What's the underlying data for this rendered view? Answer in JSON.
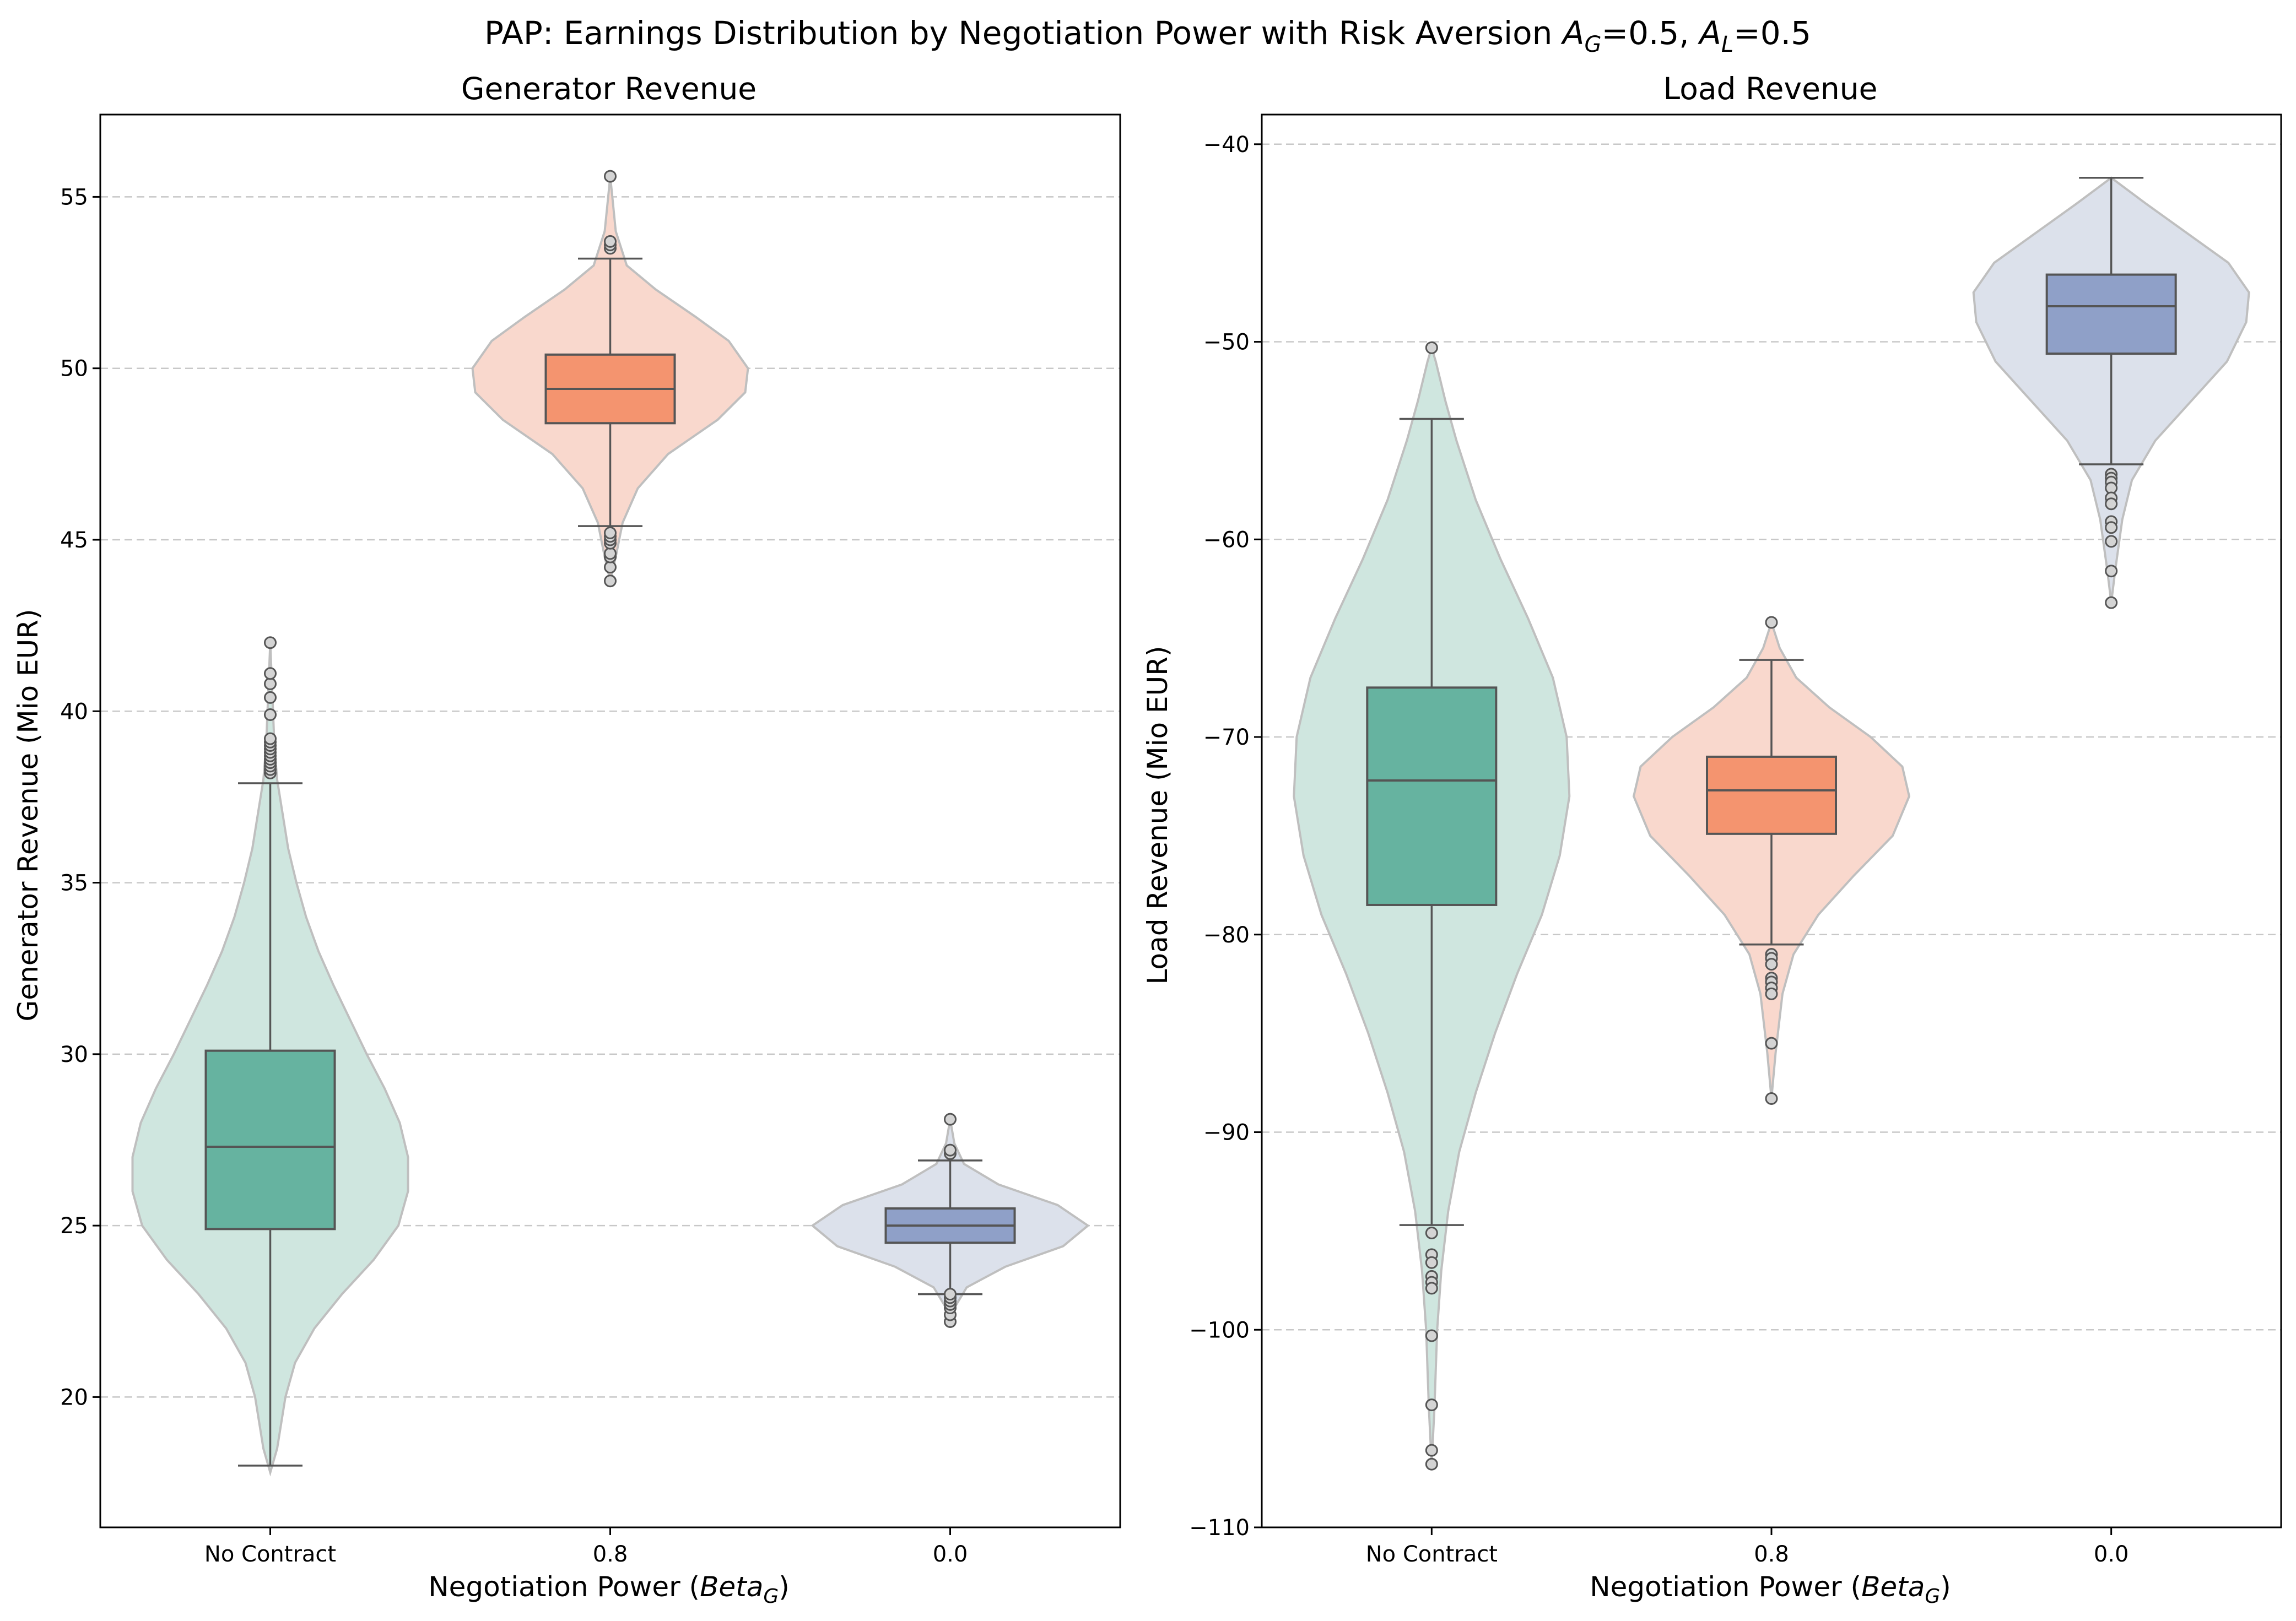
{
  "figure": {
    "suptitle": "PAP: Earnings Distribution by Negotiation Power with Risk Aversion A_G=0.5, A_L=0.5",
    "suptitle_parts": [
      "PAP: Earnings Distribution by Negotiation Power with Risk Aversion ",
      "A",
      "G",
      "=0.5, ",
      "A",
      "L",
      "=0.5"
    ]
  },
  "colors": {
    "no_contract": "#66b3a0",
    "contract_08": "#f4946f",
    "contract_00": "#8fa0c8",
    "no_contract_violin": "#cfe6df",
    "contract_08_violin": "#f9d8cd",
    "contract_00_violin": "#dce1eb"
  },
  "chart_data": [
    {
      "type": "violin+box",
      "title": "Generator Revenue",
      "xlabel_parts": [
        "Negotiation Power (",
        "Beta",
        "G",
        ")"
      ],
      "ylabel": "Generator Revenue (Mio EUR)",
      "categories": [
        "No Contract",
        "0.8",
        "0.0"
      ],
      "ylim": [
        16.2,
        57.4
      ],
      "yticks": [
        20,
        25,
        30,
        35,
        40,
        45,
        50,
        55
      ],
      "grid": "y-dashed",
      "boxes": [
        {
          "category": "No Contract",
          "min": 18.0,
          "q1": 24.9,
          "median": 27.3,
          "q3": 30.1,
          "max": 37.9,
          "outliers": [
            38.2,
            38.3,
            38.4,
            38.5,
            38.6,
            38.7,
            38.8,
            38.9,
            39.0,
            39.1,
            39.2,
            39.9,
            40.4,
            40.8,
            41.1,
            42.0
          ],
          "violin": {
            "y_min": 17.8,
            "y_max": 42.0,
            "width_profile": [
              [
                17.8,
                0.0
              ],
              [
                18.5,
                0.05
              ],
              [
                20,
                0.11
              ],
              [
                21,
                0.18
              ],
              [
                22,
                0.32
              ],
              [
                23,
                0.52
              ],
              [
                24,
                0.75
              ],
              [
                25,
                0.93
              ],
              [
                26,
                1.0
              ],
              [
                27,
                1.0
              ],
              [
                28,
                0.94
              ],
              [
                29,
                0.83
              ],
              [
                30,
                0.7
              ],
              [
                31,
                0.58
              ],
              [
                32,
                0.46
              ],
              [
                33,
                0.35
              ],
              [
                34,
                0.26
              ],
              [
                35,
                0.19
              ],
              [
                36,
                0.13
              ],
              [
                37,
                0.09
              ],
              [
                38,
                0.05
              ],
              [
                39,
                0.03
              ],
              [
                40,
                0.02
              ],
              [
                41,
                0.01
              ],
              [
                42,
                0.0
              ]
            ]
          }
        },
        {
          "category": "0.8",
          "min": 45.4,
          "q1": 48.4,
          "median": 49.4,
          "q3": 50.4,
          "max": 53.2,
          "outliers": [
            43.8,
            44.2,
            44.5,
            44.6,
            44.9,
            45.0,
            45.1,
            45.2,
            53.5,
            53.6,
            53.7,
            55.6
          ],
          "violin": {
            "y_min": 43.8,
            "y_max": 55.6,
            "width_profile": [
              [
                43.8,
                0.0
              ],
              [
                44.5,
                0.04
              ],
              [
                45.5,
                0.09
              ],
              [
                46.5,
                0.2
              ],
              [
                47.5,
                0.42
              ],
              [
                48.5,
                0.78
              ],
              [
                49.3,
                0.98
              ],
              [
                50,
                1.0
              ],
              [
                50.8,
                0.86
              ],
              [
                51.5,
                0.62
              ],
              [
                52.3,
                0.33
              ],
              [
                53,
                0.12
              ],
              [
                54,
                0.04
              ],
              [
                55,
                0.015
              ],
              [
                55.6,
                0.0
              ]
            ]
          }
        },
        {
          "category": "0.0",
          "min": 23.0,
          "q1": 24.5,
          "median": 25.0,
          "q3": 25.5,
          "max": 26.9,
          "outliers": [
            22.2,
            22.4,
            22.6,
            22.7,
            22.8,
            22.9,
            23.0,
            27.1,
            27.2,
            28.1
          ],
          "violin": {
            "y_min": 22.2,
            "y_max": 28.1,
            "width_profile": [
              [
                22.2,
                0.0
              ],
              [
                22.6,
                0.03
              ],
              [
                23.2,
                0.12
              ],
              [
                23.8,
                0.4
              ],
              [
                24.4,
                0.82
              ],
              [
                25,
                1.0
              ],
              [
                25.6,
                0.78
              ],
              [
                26.2,
                0.35
              ],
              [
                26.8,
                0.1
              ],
              [
                27.4,
                0.03
              ],
              [
                28.1,
                0.0
              ]
            ]
          }
        }
      ]
    },
    {
      "type": "violin+box",
      "title": "Load Revenue",
      "xlabel_parts": [
        "Negotiation Power (",
        "Beta",
        "G",
        ")"
      ],
      "ylabel": "Load Revenue (Mio EUR)",
      "categories": [
        "No Contract",
        "0.8",
        "0.0"
      ],
      "ylim": [
        -110.0,
        -38.5
      ],
      "yticks": [
        -110,
        -100,
        -90,
        -80,
        -70,
        -60,
        -50,
        -40
      ],
      "grid": "y-dashed",
      "boxes": [
        {
          "category": "No Contract",
          "min": -94.7,
          "q1": -78.5,
          "median": -72.2,
          "q3": -67.5,
          "max": -53.9,
          "outliers": [
            -95.1,
            -96.2,
            -96.6,
            -97.3,
            -97.6,
            -97.9,
            -100.3,
            -103.8,
            -106.1,
            -106.8,
            -50.3
          ],
          "violin": {
            "y_min": -106.8,
            "y_max": -50.3,
            "width_profile": [
              [
                -106.8,
                0.0
              ],
              [
                -104,
                0.02
              ],
              [
                -100,
                0.04
              ],
              [
                -97,
                0.07
              ],
              [
                -94,
                0.12
              ],
              [
                -91,
                0.2
              ],
              [
                -88,
                0.32
              ],
              [
                -85,
                0.46
              ],
              [
                -82,
                0.62
              ],
              [
                -79,
                0.8
              ],
              [
                -76,
                0.93
              ],
              [
                -73,
                1.0
              ],
              [
                -70,
                0.98
              ],
              [
                -67,
                0.88
              ],
              [
                -64,
                0.7
              ],
              [
                -61,
                0.5
              ],
              [
                -58,
                0.32
              ],
              [
                -55,
                0.18
              ],
              [
                -53,
                0.1
              ],
              [
                -51,
                0.03
              ],
              [
                -50.3,
                0.0
              ]
            ]
          }
        },
        {
          "category": "0.8",
          "min": -80.5,
          "q1": -74.9,
          "median": -72.7,
          "q3": -71.0,
          "max": -66.1,
          "outliers": [
            -81.0,
            -81.2,
            -81.5,
            -82.2,
            -82.4,
            -82.7,
            -83.0,
            -85.5,
            -88.3,
            -64.2
          ],
          "violin": {
            "y_min": -88.3,
            "y_max": -64.2,
            "width_profile": [
              [
                -88.3,
                0.0
              ],
              [
                -86,
                0.03
              ],
              [
                -83,
                0.08
              ],
              [
                -81,
                0.16
              ],
              [
                -79,
                0.34
              ],
              [
                -77,
                0.6
              ],
              [
                -75,
                0.88
              ],
              [
                -73,
                1.0
              ],
              [
                -71.5,
                0.95
              ],
              [
                -70,
                0.72
              ],
              [
                -68.5,
                0.42
              ],
              [
                -67,
                0.18
              ],
              [
                -65.5,
                0.06
              ],
              [
                -64.2,
                0.0
              ]
            ]
          }
        },
        {
          "category": "0.0",
          "min": -56.2,
          "q1": -50.6,
          "median": -48.2,
          "q3": -46.6,
          "max": -41.7,
          "outliers": [
            -56.7,
            -56.9,
            -57.1,
            -57.4,
            -57.9,
            -58.2,
            -59.1,
            -59.4,
            -60.1,
            -61.6,
            -63.2
          ],
          "violin": {
            "y_min": -63.2,
            "y_max": -41.7,
            "width_profile": [
              [
                -63.2,
                0.0
              ],
              [
                -61.5,
                0.03
              ],
              [
                -59,
                0.08
              ],
              [
                -57,
                0.15
              ],
              [
                -55,
                0.32
              ],
              [
                -53,
                0.58
              ],
              [
                -51,
                0.84
              ],
              [
                -49,
                0.98
              ],
              [
                -47.5,
                1.0
              ],
              [
                -46,
                0.85
              ],
              [
                -44.5,
                0.55
              ],
              [
                -43,
                0.25
              ],
              [
                -41.7,
                0.0
              ]
            ]
          }
        }
      ]
    }
  ]
}
